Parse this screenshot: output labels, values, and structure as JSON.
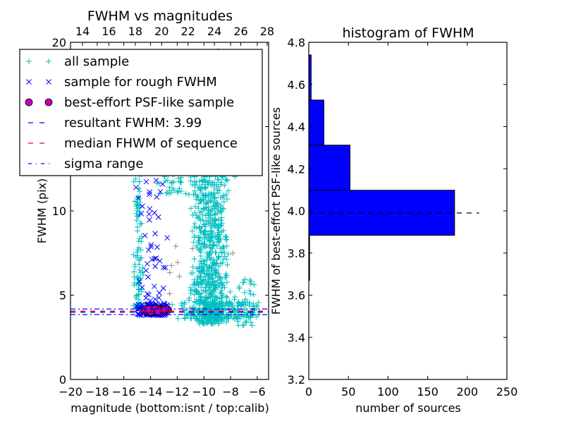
{
  "chart_data": [
    {
      "type": "scatter",
      "title": "FWHM vs magnitudes",
      "xlabel": "magnitude (bottom:isnt / top:calib)",
      "ylabel": "FWHM (pix)",
      "xlim": [
        -20,
        -5.15
      ],
      "ylim": [
        0,
        20
      ],
      "top_xlim": [
        13.09,
        28.11
      ],
      "xticks": [
        -20,
        -18,
        -16,
        -14,
        -12,
        -10,
        -8,
        -6
      ],
      "xtick_labels": [
        "−20",
        "−18",
        "−16",
        "−14",
        "−12",
        "−10",
        "−8",
        "−6"
      ],
      "top_xticks": [
        14,
        16,
        18,
        20,
        22,
        24,
        26,
        28
      ],
      "top_xtick_labels": [
        "14",
        "16",
        "18",
        "20",
        "22",
        "24",
        "26",
        "28"
      ],
      "yticks": [
        0,
        5,
        10,
        15,
        20
      ],
      "ytick_labels": [
        "0",
        "5",
        "10",
        "15",
        "20"
      ],
      "legend_position": "upper-left",
      "legend": [
        {
          "label": "all sample",
          "marker": "plus",
          "color": "#00bfbf"
        },
        {
          "label": "sample for rough FWHM",
          "marker": "x",
          "color": "#0000ff"
        },
        {
          "label": "best-effort PSF-like sample",
          "marker": "circle",
          "color": "#bf00bf"
        },
        {
          "label": "resultant FWHM: 3.99",
          "marker": "dashed",
          "color": "#0000ff"
        },
        {
          "label": "median FHWM of sequence",
          "marker": "dashed",
          "color": "#ff0000"
        },
        {
          "label": "sigma range",
          "marker": "dashdot",
          "color": "#0000ff"
        }
      ],
      "hlines": [
        {
          "name": "resultant-fwhm",
          "y": 3.99,
          "color": "#0000ff",
          "style": "dashed"
        },
        {
          "name": "median-fwhm",
          "y": 4.05,
          "color": "#ff0000",
          "style": "dashed"
        },
        {
          "name": "sigma-upper",
          "y": 4.18,
          "color": "#0000ff",
          "style": "dashdot"
        },
        {
          "name": "sigma-lower",
          "y": 3.85,
          "color": "#0000ff",
          "style": "dashdot"
        }
      ],
      "series": [
        {
          "name": "all sample",
          "color": "#00bfbf",
          "marker": "plus",
          "clusters": [
            {
              "n": 110,
              "x": [
                -15.3,
                -14.5
              ],
              "y": [
                4.2,
                13.5
              ]
            },
            {
              "n": 700,
              "x": [
                -11.2,
                -8.0
              ],
              "y": [
                3.3,
                12.5
              ]
            },
            {
              "n": 160,
              "x": [
                -10.5,
                -7.2
              ],
              "y": [
                12,
                19.5
              ]
            },
            {
              "n": 220,
              "x": [
                -12.5,
                -5.5
              ],
              "y": [
                3.6,
                4.6
              ]
            },
            {
              "n": 60,
              "x": [
                -14.0,
                -11.0
              ],
              "y": [
                11,
                13.5
              ]
            },
            {
              "n": 40,
              "x": [
                -8.0,
                -5.5
              ],
              "y": [
                3.2,
                6
              ]
            }
          ]
        },
        {
          "name": "outliers",
          "color": "#888888",
          "marker": "plus",
          "clusters": [
            {
              "n": 8,
              "x": [
                -16.5,
                -7.5
              ],
              "y": [
                5,
                9
              ]
            }
          ]
        },
        {
          "name": "sample for rough FWHM",
          "color": "#0000ff",
          "marker": "x",
          "clusters": [
            {
              "n": 120,
              "x": [
                -15.2,
                -12.4
              ],
              "y": [
                3.8,
                4.5
              ]
            },
            {
              "n": 45,
              "x": [
                -15.3,
                -12.5
              ],
              "y": [
                4.5,
                12
              ]
            }
          ]
        },
        {
          "name": "best-effort PSF-like sample",
          "color": "#bf00bf",
          "marker": "circle",
          "clusters": [
            {
              "n": 60,
              "x": [
                -14.7,
                -12.6
              ],
              "y": [
                4.0,
                4.2
              ]
            }
          ]
        }
      ]
    },
    {
      "type": "bar",
      "orientation": "horizontal",
      "title": "histogram of FWHM",
      "xlabel": "number of sources",
      "ylabel": "FWHM of best-effort PSF-like sources",
      "xlim": [
        0,
        250
      ],
      "ylim": [
        3.2,
        4.8
      ],
      "xticks": [
        0,
        50,
        100,
        150,
        200,
        250
      ],
      "xtick_labels": [
        "0",
        "50",
        "100",
        "150",
        "200",
        "250"
      ],
      "yticks": [
        3.2,
        3.4,
        3.6,
        3.8,
        4.0,
        4.2,
        4.4,
        4.6,
        4.8
      ],
      "ytick_labels": [
        "3.2",
        "3.4",
        "3.6",
        "3.8",
        "4.0",
        "4.2",
        "4.4",
        "4.6",
        "4.8"
      ],
      "bin_edges": [
        3.67,
        3.884,
        4.098,
        4.312,
        4.526,
        4.74
      ],
      "counts": [
        1,
        184,
        52,
        19,
        3
      ],
      "bar_color": "#0000ff",
      "hline": {
        "y": 3.99,
        "xmax": 215,
        "color": "#000000",
        "style": "dashed"
      }
    }
  ]
}
